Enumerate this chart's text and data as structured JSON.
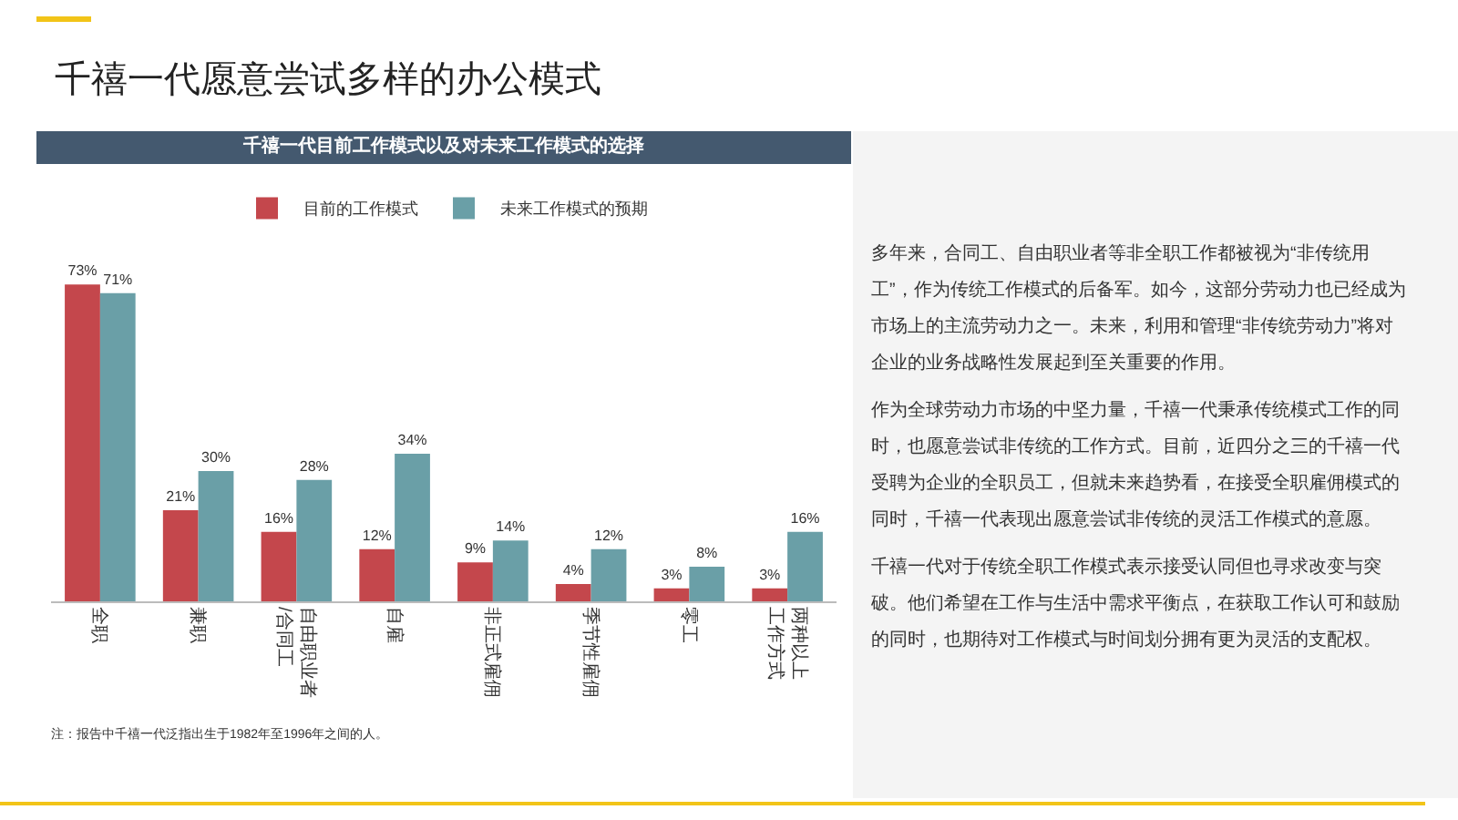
{
  "chart_data": {
    "type": "bar",
    "title": "千禧一代愿意尝试多样的办公模式",
    "subtitle": "千禧一代目前工作模式以及对未来工作模式的选择",
    "categories": [
      "全职",
      "兼职",
      "自由职业者/合同工",
      "自雇",
      "非正式雇佣",
      "季节性雇佣",
      "零工",
      "两种以上工作方式"
    ],
    "series": [
      {
        "name": "目前的工作模式",
        "color": "#c4474c",
        "values": [
          73,
          21,
          16,
          12,
          9,
          4,
          3,
          3
        ],
        "value_labels": [
          "73%",
          "21%",
          "16%",
          "12%",
          "9%",
          "4%",
          "3%",
          "3%"
        ]
      },
      {
        "name": "未来工作模式的预期",
        "color": "#6a9fa7",
        "values": [
          71,
          30,
          28,
          34,
          14,
          12,
          8,
          16
        ],
        "value_labels": [
          "71%",
          "30%",
          "28%",
          "34%",
          "14%",
          "12%",
          "8%",
          "16%"
        ]
      }
    ],
    "legend": "top",
    "annotations": [
      "注：报告中千禧一代泛指出生于1982年至1996年之间的人。",
      "多年来，合同工、自由职业者等非全职工作都被视为“非传统用工”，作为传统工作模式的后备军。如今，这部分劳动力也已经成为市场上的主流劳动力之一。未来，利用和管理“非传统劳动力”将对企业的业务战略性发展起到至关重要的作用。",
      "作为全球劳动力市场的中坚力量，千禧一代秉承传统模式工作的同时，也愿意尝试非传统的工作方式。目前，近四分之三的千禧一代受聘为企业的全职员工，但就未来趋势看，在接受全职雇佣模式的同时，千禧一代表现出愿意尝试非传统的灵活工作模式的意愿。",
      "千禧一代对于传统全职工作模式表示接受认同但也寻求改变与突破。他们希望在工作与生活中需求平衡点，在获取工作认可和鼓励的同时，也期待对工作模式与时间划分拥有更为灵活的支配权。"
    ]
  }
}
